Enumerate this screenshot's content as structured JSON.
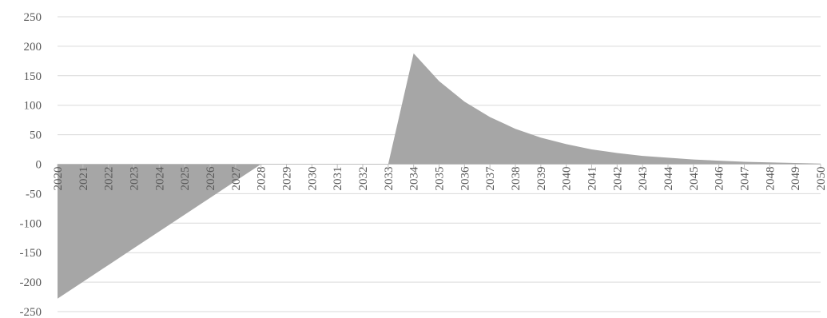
{
  "chart_data": {
    "type": "area",
    "title": "",
    "xlabel": "",
    "ylabel": "",
    "x": [
      "2020",
      "2021",
      "2022",
      "2023",
      "2024",
      "2025",
      "2026",
      "2027",
      "2028",
      "2029",
      "2030",
      "2031",
      "2032",
      "2033",
      "2034",
      "2035",
      "2036",
      "2037",
      "2038",
      "2039",
      "2040",
      "2041",
      "2042",
      "2043",
      "2044",
      "2045",
      "2046",
      "2047",
      "2048",
      "2049",
      "2050"
    ],
    "values": [
      -228,
      -199.5,
      -171,
      -142.5,
      -114,
      -85.5,
      -57,
      -28.5,
      0,
      0,
      0,
      0,
      0,
      0,
      188,
      141,
      106,
      80,
      60,
      45,
      34,
      25,
      19,
      14,
      11,
      8,
      6,
      4,
      3,
      2,
      1
    ],
    "ylim": [
      -250,
      250
    ],
    "yticks": [
      -250,
      -200,
      -150,
      -100,
      -50,
      0,
      50,
      100,
      150,
      200,
      250
    ],
    "fill_color": "#a6a6a6",
    "grid": true,
    "legend": "none"
  }
}
